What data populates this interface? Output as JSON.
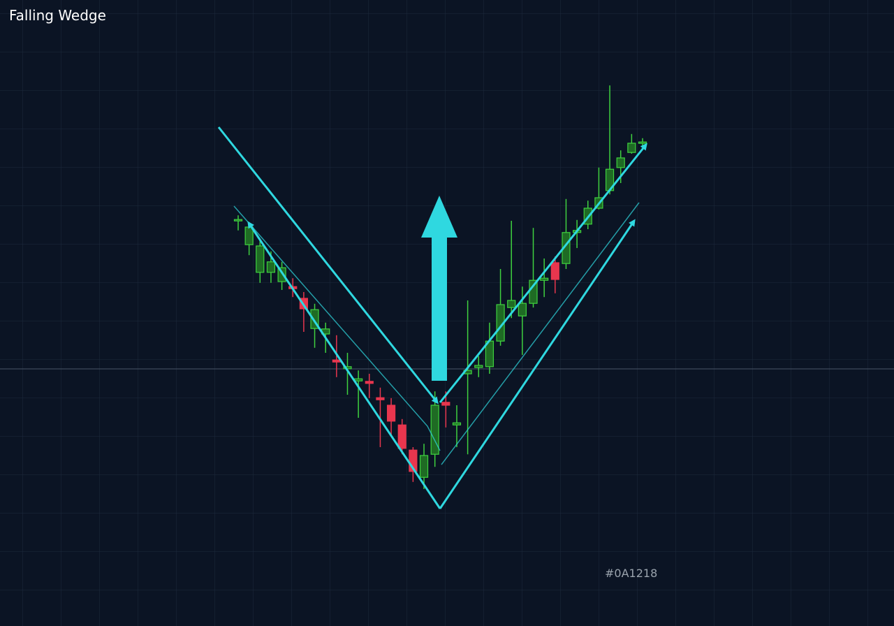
{
  "chart_data": {
    "type": "candlestick",
    "title": "Falling Wedge",
    "annotation": "#0A1218",
    "categories": [
      null,
      null,
      null,
      null,
      null,
      null,
      null,
      null,
      null,
      null,
      null,
      null,
      null,
      null,
      null,
      null,
      null,
      null,
      null,
      null,
      null,
      null,
      null,
      null,
      null,
      null,
      null,
      null,
      null,
      null,
      null,
      null,
      null,
      null,
      null,
      null,
      null,
      null
    ],
    "open": [
      74.0,
      68.3,
      61.7,
      61.7,
      59.5,
      58.3,
      55.5,
      48.3,
      47.0,
      40.8,
      38.7,
      35.8,
      35.7,
      31.8,
      30.0,
      25.3,
      19.3,
      12.8,
      18.3,
      30.7,
      25.3,
      37.5,
      39.0,
      39.2,
      45.3,
      53.3,
      51.3,
      54.3,
      59.8,
      64.0,
      63.8,
      71.2,
      73.2,
      77.0,
      81.2,
      86.7,
      90.3,
      92.5
    ],
    "high": [
      75.3,
      73.7,
      69.2,
      66.7,
      64.2,
      60.3,
      57.0,
      54.2,
      49.7,
      46.7,
      42.5,
      38.3,
      37.5,
      34.2,
      31.7,
      26.7,
      20.0,
      20.8,
      33.3,
      33.3,
      30.0,
      55.0,
      41.7,
      49.7,
      62.5,
      74.0,
      58.3,
      72.3,
      65.0,
      65.5,
      79.2,
      74.2,
      78.8,
      86.7,
      106.3,
      90.8,
      94.7,
      93.7
    ],
    "low": [
      71.7,
      65.8,
      59.2,
      59.2,
      57.5,
      55.8,
      47.5,
      43.7,
      42.5,
      36.7,
      32.5,
      27.0,
      31.7,
      20.0,
      22.5,
      18.3,
      11.7,
      10.0,
      15.3,
      24.7,
      20.0,
      18.3,
      36.7,
      37.5,
      44.2,
      50.8,
      42.0,
      53.3,
      55.8,
      56.7,
      62.5,
      67.5,
      72.0,
      76.7,
      80.3,
      83.0,
      90.0,
      91.7
    ],
    "close": [
      74.3,
      72.5,
      68.0,
      64.2,
      62.8,
      57.8,
      53.0,
      52.8,
      48.2,
      40.3,
      39.2,
      36.3,
      35.2,
      31.3,
      26.2,
      19.7,
      14.2,
      18.0,
      30.0,
      30.0,
      25.8,
      38.3,
      39.5,
      45.3,
      54.0,
      55.0,
      54.3,
      59.8,
      60.3,
      60.0,
      71.2,
      71.7,
      77.0,
      79.5,
      86.3,
      89.0,
      92.5,
      92.8
    ],
    "up_color": "#3fd13f",
    "down_color": "#e8364e",
    "ylim": [
      0,
      120
    ]
  }
}
